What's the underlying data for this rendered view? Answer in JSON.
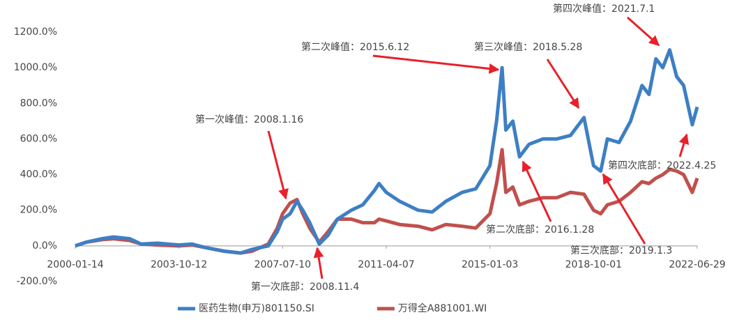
{
  "chart_data": {
    "type": "line",
    "x": [
      "2000-01-14",
      "2000-06-01",
      "2001-01-01",
      "2001-06-01",
      "2002-01-01",
      "2002-06-01",
      "2003-01-01",
      "2003-10-12",
      "2004-04-01",
      "2004-10-01",
      "2005-06-01",
      "2006-01-01",
      "2006-06-01",
      "2007-01-01",
      "2007-05-01",
      "2007-07-10",
      "2007-10-16",
      "2008-01-16",
      "2008-04-01",
      "2008-07-01",
      "2008-11-04",
      "2009-03-01",
      "2009-07-01",
      "2010-01-01",
      "2010-06-01",
      "2010-11-01",
      "2011-01-01",
      "2011-04-07",
      "2011-10-01",
      "2012-06-01",
      "2012-12-01",
      "2013-06-01",
      "2014-01-01",
      "2014-07-01",
      "2015-01-03",
      "2015-04-01",
      "2015-06-12",
      "2015-08-01",
      "2015-11-01",
      "2016-01-28",
      "2016-06-01",
      "2016-12-01",
      "2017-06-01",
      "2017-12-01",
      "2018-05-28",
      "2018-10-01",
      "2019-01-03",
      "2019-04-01",
      "2019-09-01",
      "2020-02-01",
      "2020-07-01",
      "2020-10-01",
      "2021-01-01",
      "2021-04-01",
      "2021-07-01",
      "2021-10-01",
      "2022-01-01",
      "2022-04-25",
      "2022-06-29"
    ],
    "series": [
      {
        "name": "医药生物(申万)801150.SI",
        "color": "#3d7fc4",
        "values": [
          0,
          20,
          40,
          50,
          40,
          10,
          15,
          5,
          10,
          -10,
          -30,
          -40,
          -20,
          0,
          80,
          150,
          180,
          250,
          200,
          130,
          10,
          60,
          150,
          200,
          230,
          310,
          350,
          300,
          250,
          200,
          190,
          250,
          300,
          320,
          450,
          700,
          1000,
          650,
          700,
          500,
          570,
          600,
          600,
          620,
          720,
          450,
          420,
          600,
          580,
          700,
          900,
          850,
          1050,
          1000,
          1100,
          950,
          900,
          680,
          780
        ]
      },
      {
        "name": "万得全A881001.WI",
        "color": "#c0504d",
        "values": [
          0,
          20,
          35,
          40,
          30,
          10,
          5,
          0,
          5,
          -10,
          -30,
          -40,
          -30,
          10,
          100,
          180,
          240,
          260,
          180,
          100,
          20,
          80,
          150,
          150,
          130,
          130,
          150,
          140,
          120,
          110,
          90,
          120,
          110,
          100,
          180,
          350,
          540,
          300,
          330,
          230,
          250,
          270,
          270,
          300,
          290,
          200,
          180,
          230,
          250,
          300,
          360,
          350,
          380,
          400,
          430,
          420,
          400,
          300,
          380
        ]
      }
    ],
    "xlim": [
      "2000-01-14",
      "2022-06-29"
    ],
    "xticks": [
      "2000-01-14",
      "2003-10-12",
      "2007-07-10",
      "2011-04-07",
      "2015-01-03",
      "2018-10-01",
      "2022-06-29"
    ],
    "ylim": [
      -200,
      1200
    ],
    "yticks": [
      {
        "value": -200,
        "label": "-200.0%"
      },
      {
        "value": 0,
        "label": "0.0%"
      },
      {
        "value": 200,
        "label": "200.0%"
      },
      {
        "value": 400,
        "label": "400.0%"
      },
      {
        "value": 600,
        "label": "600.0%"
      },
      {
        "value": 800,
        "label": "800.0%"
      },
      {
        "value": 1000,
        "label": "1000.0%"
      },
      {
        "value": 1200,
        "label": "1200.0%"
      }
    ],
    "annotations": [
      "第一次峰值：2008.1.16",
      "第一次底部：2008.11.4",
      "第二次峰值：2015.6.12",
      "第二次底部：2016.1.28",
      "第三次峰值：2018.5.28",
      "第三次底部：2019.1.3",
      "第四次峰值：2021.7.1",
      "第四次底部：2022.4.25"
    ],
    "legend": "bottom"
  }
}
